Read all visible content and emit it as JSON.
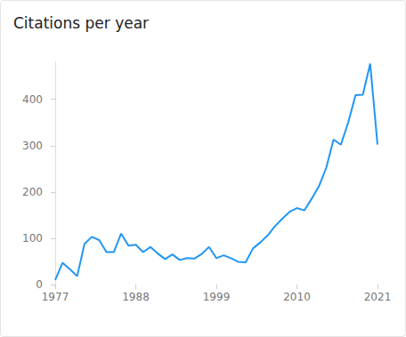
{
  "chart_data": {
    "type": "line",
    "title": "Citations per year",
    "x": [
      1977,
      1978,
      1979,
      1980,
      1981,
      1982,
      1983,
      1984,
      1985,
      1986,
      1987,
      1988,
      1989,
      1990,
      1991,
      1992,
      1993,
      1994,
      1995,
      1996,
      1997,
      1998,
      1999,
      2000,
      2001,
      2002,
      2003,
      2004,
      2005,
      2006,
      2007,
      2008,
      2009,
      2010,
      2011,
      2012,
      2013,
      2014,
      2015,
      2016,
      2017,
      2018,
      2019,
      2020,
      2021
    ],
    "values": [
      10,
      47,
      33,
      18,
      88,
      103,
      96,
      70,
      70,
      110,
      84,
      86,
      70,
      81,
      67,
      55,
      65,
      53,
      57,
      56,
      66,
      81,
      57,
      63,
      57,
      49,
      48,
      78,
      91,
      106,
      126,
      142,
      157,
      165,
      160,
      185,
      212,
      252,
      313,
      302,
      350,
      409,
      410,
      477,
      302
    ],
    "color": "#2196f3",
    "xlim": [
      1977,
      2021
    ],
    "xticks": [
      1977,
      1988,
      1999,
      2010,
      2021
    ],
    "ylim": [
      0,
      480
    ],
    "yticks": [
      0,
      100,
      200,
      300,
      400
    ],
    "grid": false
  }
}
